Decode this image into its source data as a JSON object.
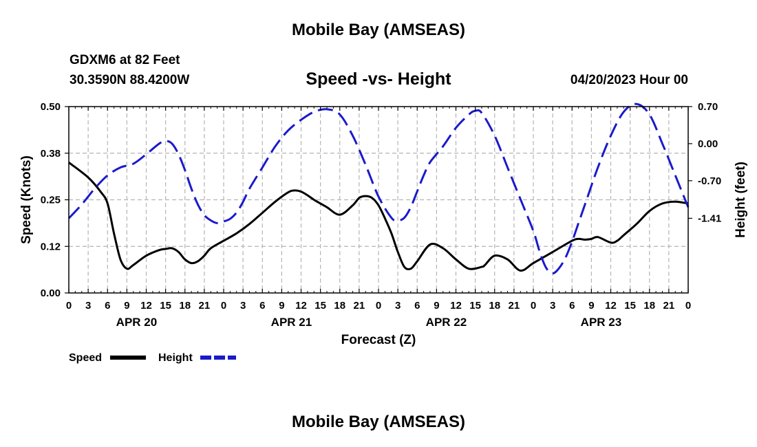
{
  "header": {
    "title": "Mobile Bay (AMSEAS)",
    "station": "GDXM6 at 82 Feet",
    "coords": "30.3590N  88.4200W",
    "subtitle": "Speed -vs- Height",
    "forecast_time": "04/20/2023 Hour 00"
  },
  "footer": {
    "title": "Mobile Bay (AMSEAS)"
  },
  "colors": {
    "speed": "#000000",
    "height": "#1a1acc",
    "grid": "#b4b4b4"
  },
  "chart_data": {
    "type": "line",
    "xlabel": "Forecast (Z)",
    "x_hours_range": [
      0,
      96
    ],
    "x_tick_labels": [
      "0",
      "3",
      "6",
      "9",
      "12",
      "15",
      "18",
      "21",
      "0",
      "3",
      "6",
      "9",
      "12",
      "15",
      "18",
      "21",
      "0",
      "3",
      "6",
      "9",
      "12",
      "15",
      "18",
      "21",
      "0",
      "3",
      "6",
      "9",
      "12",
      "15",
      "18",
      "21",
      "0"
    ],
    "day_labels": [
      {
        "label": "APR 20",
        "hour": 10.5
      },
      {
        "label": "APR 21",
        "hour": 34.5
      },
      {
        "label": "APR 22",
        "hour": 58.5
      },
      {
        "label": "APR 23",
        "hour": 82.5
      }
    ],
    "left_axis": {
      "label": "Speed (Knots)",
      "range": [
        0,
        0.5
      ],
      "ticks": [
        0,
        0.125,
        0.25,
        0.375,
        0.5
      ],
      "tick_labels": [
        "0.00",
        "0.12",
        "0.25",
        "0.38",
        "0.50"
      ]
    },
    "right_axis": {
      "label": "Height (feet)",
      "range": [
        -2.82,
        0.7
      ],
      "ticks": [
        -1.41,
        -0.7,
        0.0,
        0.7
      ],
      "tick_labels": [
        "-1.41",
        "-0.70",
        "0.00",
        "0.70"
      ]
    },
    "series": [
      {
        "name": "Speed",
        "axis": "left",
        "style": "solid",
        "x": [
          0,
          3,
          5,
          6,
          7,
          8,
          9,
          10,
          12,
          14,
          15,
          16,
          17,
          18,
          19,
          20,
          21,
          22,
          24,
          26,
          28,
          30,
          32,
          34,
          35,
          36,
          37,
          38,
          39,
          40,
          42,
          44,
          45,
          46,
          47,
          48,
          49,
          50,
          51,
          52,
          53,
          54,
          56,
          58,
          60,
          62,
          64,
          64.5,
          66,
          68,
          70,
          72,
          75,
          78,
          79,
          80,
          81,
          82,
          84,
          85,
          86,
          88,
          90,
          92,
          94,
          96
        ],
        "values": [
          0.35,
          0.31,
          0.27,
          0.24,
          0.16,
          0.09,
          0.065,
          0.075,
          0.1,
          0.115,
          0.118,
          0.12,
          0.11,
          0.09,
          0.08,
          0.085,
          0.1,
          0.12,
          0.14,
          0.16,
          0.185,
          0.215,
          0.245,
          0.27,
          0.275,
          0.272,
          0.262,
          0.25,
          0.24,
          0.23,
          0.21,
          0.235,
          0.255,
          0.26,
          0.255,
          0.235,
          0.2,
          0.16,
          0.11,
          0.07,
          0.065,
          0.085,
          0.13,
          0.12,
          0.09,
          0.065,
          0.07,
          0.075,
          0.1,
          0.09,
          0.06,
          0.08,
          0.11,
          0.14,
          0.145,
          0.143,
          0.145,
          0.15,
          0.135,
          0.14,
          0.155,
          0.185,
          0.22,
          0.24,
          0.245,
          0.24
        ]
      },
      {
        "name": "Height",
        "axis": "right",
        "style": "dashed",
        "x": [
          0,
          2,
          4,
          6,
          8,
          10,
          12,
          14,
          15,
          16,
          17,
          18,
          19,
          20,
          21,
          22,
          23,
          24,
          25,
          26,
          27,
          28,
          30,
          32,
          34,
          36,
          38,
          40,
          42,
          44,
          46,
          48,
          50,
          51,
          52,
          53,
          54,
          55,
          56,
          58,
          60,
          62,
          63,
          64,
          66,
          68,
          70,
          72,
          73,
          74,
          75,
          76,
          77,
          78,
          79,
          80,
          82,
          84,
          86,
          88,
          90,
          92,
          94,
          96
        ],
        "values": [
          -1.41,
          -1.15,
          -0.85,
          -0.6,
          -0.45,
          -0.38,
          -0.2,
          0.0,
          0.05,
          0.0,
          -0.2,
          -0.5,
          -0.85,
          -1.15,
          -1.35,
          -1.45,
          -1.5,
          -1.47,
          -1.42,
          -1.3,
          -1.1,
          -0.85,
          -0.45,
          -0.05,
          0.25,
          0.45,
          0.6,
          0.65,
          0.55,
          0.15,
          -0.4,
          -1.0,
          -1.4,
          -1.45,
          -1.4,
          -1.2,
          -0.9,
          -0.6,
          -0.35,
          -0.05,
          0.3,
          0.55,
          0.62,
          0.58,
          0.15,
          -0.45,
          -1.05,
          -1.65,
          -2.05,
          -2.35,
          -2.45,
          -2.35,
          -2.15,
          -1.85,
          -1.5,
          -1.15,
          -0.45,
          0.15,
          0.6,
          0.75,
          0.55,
          0.0,
          -0.6,
          -1.2
        ]
      }
    ],
    "legend": [
      {
        "label": "Speed",
        "style": "solid"
      },
      {
        "label": "Height",
        "style": "dashed"
      }
    ],
    "grid": true
  }
}
